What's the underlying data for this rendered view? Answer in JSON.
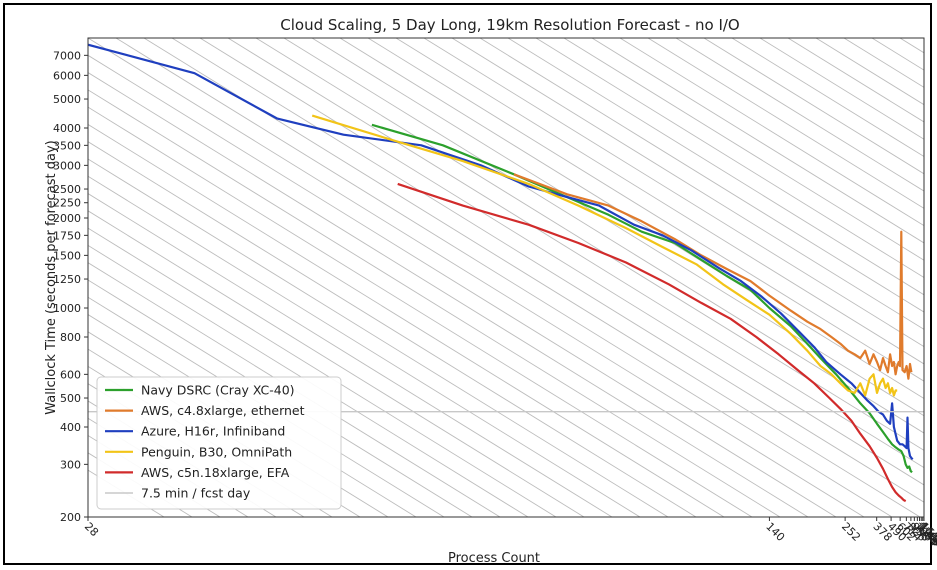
{
  "chart_data": {
    "type": "line",
    "title": "Cloud Scaling, 5 Day Long, 19km Resolution Forecast - no I/O",
    "xlabel": "Process Count",
    "ylabel": "Wallclock Time (seconds per forecast day)",
    "xscale": "reciprocal",
    "yscale": "log",
    "xlim": [
      28,
      1512
    ],
    "ylim": [
      200,
      8000
    ],
    "grid": "diagonal hatch",
    "legend_position": "lower-left",
    "x_ticks": [
      28,
      140,
      252,
      378,
      490,
      602,
      714,
      826,
      938,
      1064,
      1176,
      1288,
      1400,
      1512
    ],
    "x_tick_labels": [
      "28",
      "140",
      "252",
      "378",
      "490",
      "602",
      "714",
      "826",
      "938",
      "1064",
      "1176",
      "1288",
      "1400",
      "1512"
    ],
    "y_ticks": [
      200,
      300,
      400,
      500,
      600,
      800,
      1000,
      1250,
      1500,
      1750,
      2000,
      2250,
      2500,
      3000,
      3500,
      4000,
      5000,
      6000,
      7000
    ],
    "y_tick_labels": [
      "200",
      "300",
      "400",
      "500",
      "600",
      "800",
      "1000",
      "1250",
      "1500",
      "1750",
      "2000",
      "2250",
      "2500",
      "3000",
      "3500",
      "4000",
      "5000",
      "6000",
      "7000"
    ],
    "series": [
      {
        "name": "Navy DSRC (Cray XC-40)",
        "color": "#2ca02c",
        "points": [
          [
            42,
            4100
          ],
          [
            48,
            3500
          ],
          [
            56,
            2800
          ],
          [
            64,
            2350
          ],
          [
            72,
            2050
          ],
          [
            80,
            1800
          ],
          [
            90,
            1650
          ],
          [
            100,
            1450
          ],
          [
            112,
            1280
          ],
          [
            126,
            1150
          ],
          [
            140,
            1000
          ],
          [
            160,
            870
          ],
          [
            180,
            760
          ],
          [
            200,
            680
          ],
          [
            230,
            600
          ],
          [
            260,
            540
          ],
          [
            300,
            480
          ],
          [
            340,
            445
          ],
          [
            380,
            410
          ],
          [
            420,
            385
          ],
          [
            460,
            365
          ],
          [
            500,
            350
          ],
          [
            540,
            342
          ],
          [
            580,
            336
          ],
          [
            620,
            332
          ],
          [
            660,
            320
          ],
          [
            700,
            300
          ],
          [
            740,
            292
          ],
          [
            780,
            295
          ],
          [
            820,
            285
          ],
          [
            860,
            282
          ]
        ]
      },
      {
        "name": "AWS, c4.8xlarge, ethernet",
        "color": "#e07b2c",
        "points": [
          [
            56,
            2800
          ],
          [
            64,
            2400
          ],
          [
            72,
            2200
          ],
          [
            80,
            1950
          ],
          [
            90,
            1700
          ],
          [
            100,
            1500
          ],
          [
            112,
            1350
          ],
          [
            126,
            1230
          ],
          [
            140,
            1100
          ],
          [
            160,
            980
          ],
          [
            180,
            900
          ],
          [
            200,
            850
          ],
          [
            220,
            800
          ],
          [
            240,
            760
          ],
          [
            260,
            720
          ],
          [
            280,
            700
          ],
          [
            300,
            680
          ],
          [
            320,
            720
          ],
          [
            340,
            650
          ],
          [
            360,
            700
          ],
          [
            380,
            660
          ],
          [
            400,
            620
          ],
          [
            420,
            680
          ],
          [
            440,
            640
          ],
          [
            460,
            610
          ],
          [
            480,
            700
          ],
          [
            500,
            640
          ],
          [
            520,
            660
          ],
          [
            540,
            600
          ],
          [
            560,
            640
          ],
          [
            580,
            660
          ],
          [
            600,
            640
          ],
          [
            620,
            1800
          ],
          [
            640,
            620
          ],
          [
            680,
            610
          ],
          [
            720,
            640
          ],
          [
            760,
            580
          ],
          [
            800,
            650
          ],
          [
            840,
            610
          ]
        ]
      },
      {
        "name": "Azure, H16r, Infiniband",
        "color": "#1f3fbf",
        "points": [
          [
            28,
            7600
          ],
          [
            32,
            6100
          ],
          [
            36,
            4300
          ],
          [
            40,
            3800
          ],
          [
            46,
            3500
          ],
          [
            52,
            3000
          ],
          [
            58,
            2550
          ],
          [
            64,
            2350
          ],
          [
            70,
            2200
          ],
          [
            78,
            1900
          ],
          [
            86,
            1750
          ],
          [
            96,
            1560
          ],
          [
            108,
            1360
          ],
          [
            120,
            1230
          ],
          [
            134,
            1090
          ],
          [
            150,
            960
          ],
          [
            170,
            830
          ],
          [
            190,
            740
          ],
          [
            210,
            660
          ],
          [
            240,
            600
          ],
          [
            270,
            560
          ],
          [
            300,
            520
          ],
          [
            330,
            490
          ],
          [
            360,
            470
          ],
          [
            390,
            450
          ],
          [
            420,
            440
          ],
          [
            450,
            420
          ],
          [
            480,
            410
          ],
          [
            500,
            480
          ],
          [
            520,
            400
          ],
          [
            560,
            360
          ],
          [
            600,
            350
          ],
          [
            640,
            350
          ],
          [
            680,
            345
          ],
          [
            720,
            340
          ],
          [
            740,
            430
          ],
          [
            760,
            340
          ],
          [
            800,
            320
          ],
          [
            840,
            315
          ],
          [
            880,
            312
          ]
        ]
      },
      {
        "name": "Penguin, B30, OmniPath",
        "color": "#f2c418",
        "points": [
          [
            38,
            4400
          ],
          [
            44,
            3600
          ],
          [
            50,
            3100
          ],
          [
            58,
            2600
          ],
          [
            66,
            2200
          ],
          [
            76,
            1850
          ],
          [
            86,
            1600
          ],
          [
            98,
            1400
          ],
          [
            110,
            1200
          ],
          [
            124,
            1060
          ],
          [
            140,
            950
          ],
          [
            160,
            820
          ],
          [
            180,
            720
          ],
          [
            200,
            640
          ],
          [
            220,
            600
          ],
          [
            240,
            560
          ],
          [
            260,
            530
          ],
          [
            280,
            520
          ],
          [
            300,
            560
          ],
          [
            320,
            510
          ],
          [
            340,
            580
          ],
          [
            360,
            600
          ],
          [
            380,
            520
          ],
          [
            400,
            560
          ],
          [
            420,
            580
          ],
          [
            440,
            540
          ],
          [
            460,
            560
          ],
          [
            480,
            520
          ],
          [
            500,
            540
          ],
          [
            520,
            510
          ],
          [
            540,
            530
          ],
          [
            560,
            530
          ]
        ]
      },
      {
        "name": "AWS, c5n.18xlarge, EFA",
        "color": "#d12b2b",
        "points": [
          [
            44,
            2600
          ],
          [
            50,
            2200
          ],
          [
            58,
            1900
          ],
          [
            66,
            1650
          ],
          [
            76,
            1420
          ],
          [
            88,
            1200
          ],
          [
            100,
            1040
          ],
          [
            114,
            920
          ],
          [
            130,
            800
          ],
          [
            148,
            700
          ],
          [
            168,
            620
          ],
          [
            190,
            560
          ],
          [
            216,
            500
          ],
          [
            240,
            460
          ],
          [
            270,
            420
          ],
          [
            300,
            380
          ],
          [
            340,
            345
          ],
          [
            380,
            315
          ],
          [
            420,
            290
          ],
          [
            460,
            268
          ],
          [
            500,
            252
          ],
          [
            540,
            242
          ],
          [
            580,
            236
          ],
          [
            620,
            232
          ],
          [
            660,
            228
          ],
          [
            700,
            226
          ]
        ]
      },
      {
        "name": "7.5 min / fcst day",
        "color": "#c8c8c8",
        "points": [
          [
            28,
            450
          ],
          [
            1512,
            450
          ]
        ]
      }
    ]
  }
}
